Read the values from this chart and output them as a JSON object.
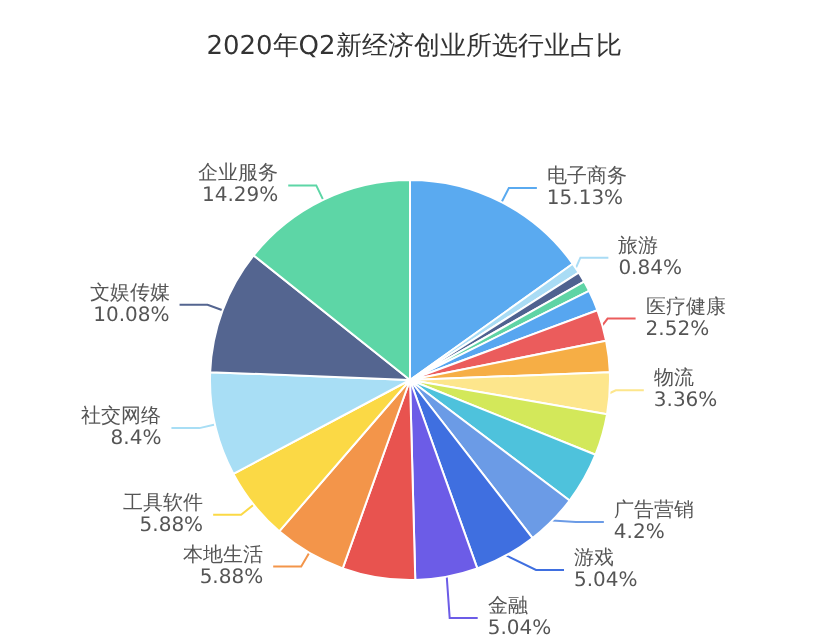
{
  "chart_data": {
    "type": "pie",
    "title": "2020年Q2新经济创业所选行业占比",
    "categories": [
      "电子商务",
      "旅游",
      null,
      null,
      null,
      "医疗健康",
      null,
      "物流",
      null,
      null,
      "广告营销",
      "游戏",
      "金融",
      null,
      "本地生活",
      "工具软件",
      "社交网络",
      "文娱传媒",
      "企业服务"
    ],
    "values": [
      15.13,
      0.84,
      0.84,
      0.84,
      1.68,
      2.52,
      2.52,
      3.36,
      3.36,
      4.2,
      4.2,
      5.04,
      5.04,
      5.88,
      5.88,
      5.88,
      8.4,
      10.08,
      14.29
    ],
    "colors": [
      "#5aaaf0",
      "#a9dcf5",
      "#4f6290",
      "#5fd4a5",
      "#57a6f0",
      "#eb5c5c",
      "#f6ae45",
      "#fde68c",
      "#d3e85a",
      "#4ec2dc",
      "#6b9be6",
      "#3f6fe0",
      "#6c5ce7",
      "#e8534f",
      "#f3954a",
      "#fbd945",
      "#a8def5",
      "#546590",
      "#5dd6a6"
    ],
    "value_labels": [
      "15.13%",
      "0.84%",
      null,
      null,
      null,
      "2.52%",
      null,
      "3.36%",
      null,
      null,
      "4.2%",
      "5.04%",
      "5.04%",
      null,
      "5.88%",
      "5.88%",
      "8.4%",
      "10.08%",
      "14.29%"
    ],
    "legend": false
  }
}
